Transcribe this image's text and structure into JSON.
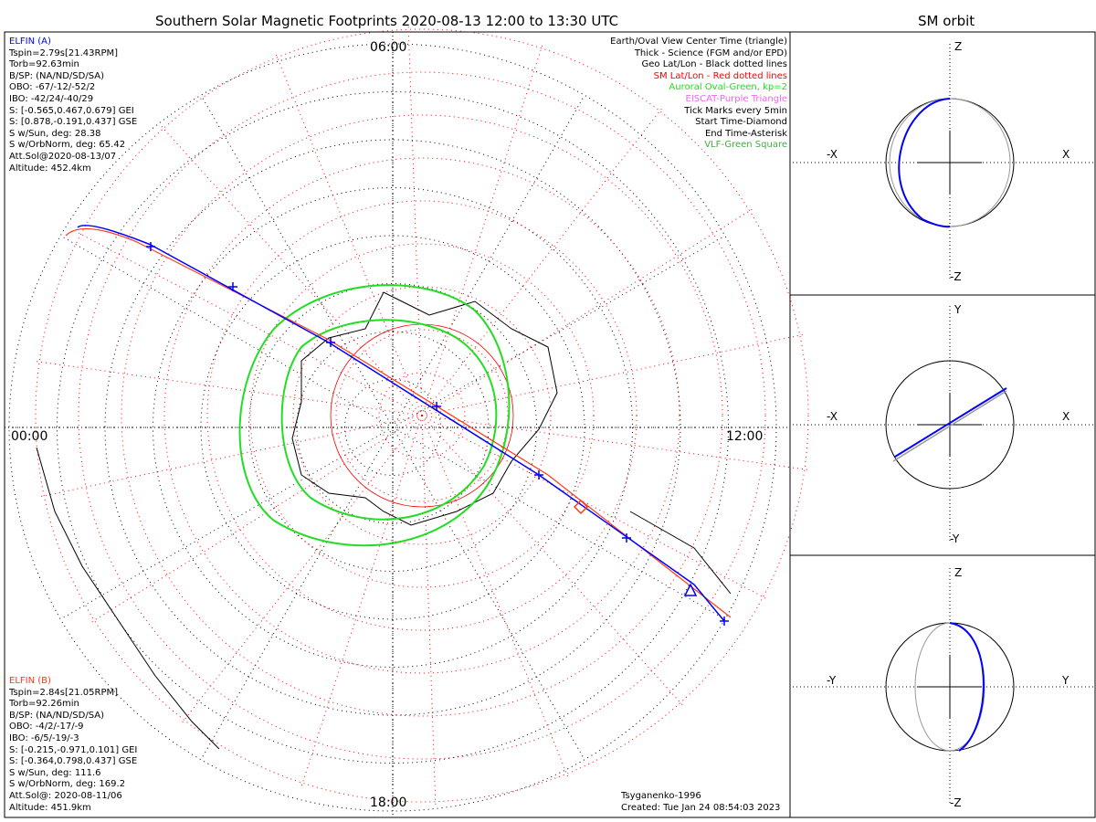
{
  "title": "Southern Solar Magnetic Footprints 2020-08-13 12:00 to 13:30 UTC",
  "orbit_title": "SM orbit",
  "colors": {
    "sat_a": "#0000ff",
    "sat_b": "#ff3a1a",
    "oval": "#22dd22",
    "sm_grid": "#ff0000",
    "eiscat": "#ee66ee",
    "vlf": "#44aa44"
  },
  "sat_a": {
    "name": "ELFIN (A)",
    "lines": [
      "Tspin=2.79s[21.43RPM]",
      "Torb=92.63min",
      "B/SP: (NA/ND/SD/SA)",
      "OBO: -67/-12/-52/2",
      "IBO: -42/24/-40/29",
      "S: [-0.565,0.467,0.679] GEI",
      "S: [0.878,-0.191,0.437] GSE",
      "S w/Sun, deg: 28.38",
      "S w/OrbNorm, deg: 65.42",
      "Att.Sol@2020-08-13/07",
      "Altitude: 452.4km"
    ]
  },
  "sat_b": {
    "name": "ELFIN (B)",
    "lines": [
      "Tspin=2.84s[21.05RPM]",
      "Torb=92.26min",
      "B/SP: (NA/ND/SD/SA)",
      "OBO: -4/2/-17/-9",
      "IBO: -6/5/-19/-3",
      "S: [-0.215,-0.971,0.101] GEI",
      "S: [-0.364,0.798,0.437] GSE",
      "S w/Sun, deg: 111.6",
      "S w/OrbNorm, deg: 169.2",
      "Att.Sol@: 2020-08-11/06",
      "Altitude: 451.9km"
    ]
  },
  "legend": [
    {
      "text": "Earth/Oval View Center Time (triangle)",
      "color": "#000000"
    },
    {
      "text": "Thick - Science (FGM and/or EPD)",
      "color": "#000000"
    },
    {
      "text": "Geo Lat/Lon - Black dotted lines",
      "color": "#000000"
    },
    {
      "text": "SM Lat/Lon - Red dotted lines",
      "color": "#ff0000"
    },
    {
      "text": "Auroral Oval-Green, kp=2",
      "color": "#22dd22"
    },
    {
      "text": "EISCAT-Purple Triangle",
      "color": "#ee66ee"
    },
    {
      "text": "Tick Marks every 5min",
      "color": "#000000"
    },
    {
      "text": "Start Time-Diamond",
      "color": "#000000"
    },
    {
      "text": "End Time-Asterisk",
      "color": "#000000"
    },
    {
      "text": "VLF-Green Square",
      "color": "#44aa44"
    }
  ],
  "mlt_labels": {
    "top": "06:00",
    "left": "00:00",
    "right": "12:00",
    "bottom": "18:00"
  },
  "footer": {
    "model": "Tsyganenko-1996",
    "created": "Created: Tue Jan 24 08:54:03 2023"
  },
  "orbit_panels": [
    {
      "top": "Z",
      "bottom": "-Z",
      "left": "-X",
      "right": "X"
    },
    {
      "top": "Y",
      "bottom": "-Y",
      "left": "-X",
      "right": "X"
    },
    {
      "top": "Z",
      "bottom": "-Z",
      "left": "-Y",
      "right": "Y"
    }
  ]
}
